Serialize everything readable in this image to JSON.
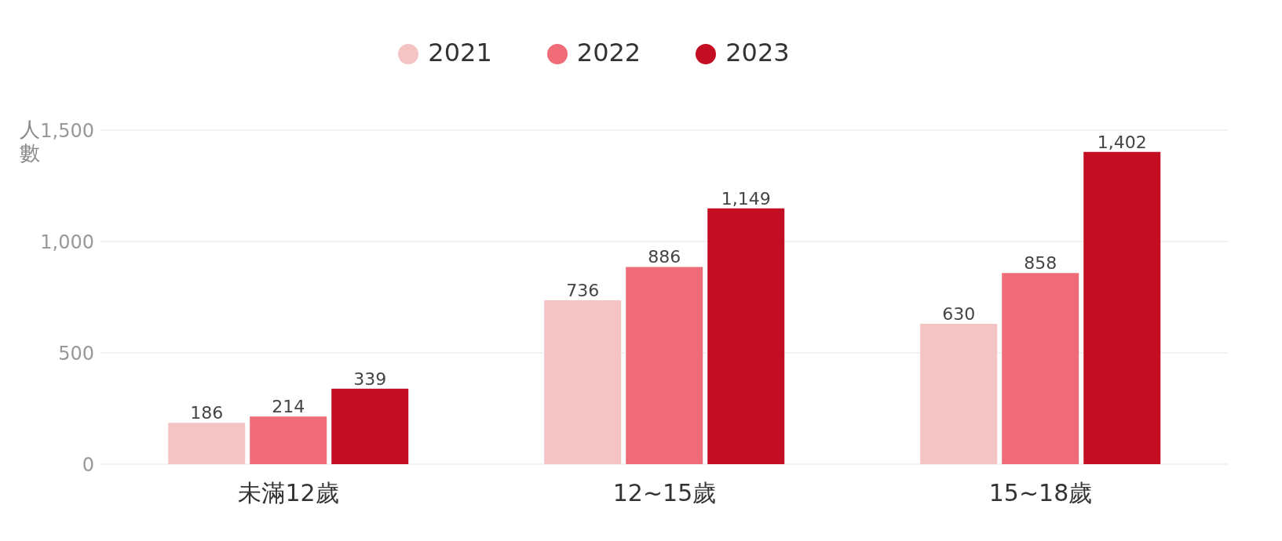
{
  "chart_data": {
    "type": "bar",
    "ylabel": "人數",
    "categories": [
      "未滿12歲",
      "12~15歲",
      "15~18歲"
    ],
    "series": [
      {
        "name": "2021",
        "color": "#f4c3c3",
        "values": [
          186,
          736,
          630
        ],
        "value_labels": [
          "186",
          "736",
          "630"
        ]
      },
      {
        "name": "2022",
        "color": "#f06b78",
        "values": [
          214,
          886,
          858
        ],
        "value_labels": [
          "214",
          "886",
          "858"
        ]
      },
      {
        "name": "2023",
        "color": "#c30d23",
        "values": [
          339,
          1149,
          1402
        ],
        "value_labels": [
          "339",
          "1,149",
          "1,402"
        ]
      }
    ],
    "ylim": [
      0,
      1500
    ],
    "yticks": [
      0,
      500,
      {
        "value": 1000,
        "label": "1,000"
      },
      {
        "value": 1500,
        "label": "1,500"
      }
    ],
    "grid": "y",
    "legend": "top"
  }
}
